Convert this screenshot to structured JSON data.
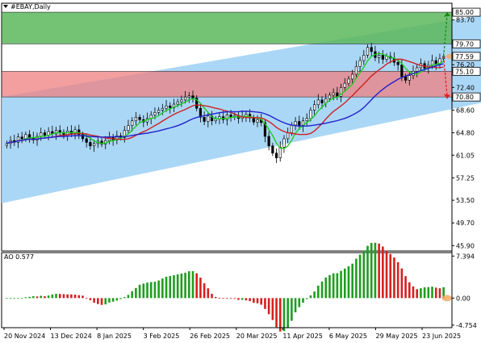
{
  "symbol_label": "#EBAY,Daily",
  "oscillator_label": "AO 0.577",
  "colors": {
    "background": "#ffffff",
    "channel": "#9cd0f5",
    "green_zone": "#5cb85c",
    "red_zone": "#f08080",
    "candle": "#000000",
    "ma_fast": "#22cc22",
    "ma_mid": "#cc2222",
    "ma_slow": "#2222cc",
    "ao_up": "#1e9e1e",
    "ao_down": "#d62020",
    "arrow_up": "#1a8a1a",
    "arrow_down": "#dd2222",
    "highlight": "#f5a55a",
    "price_box_stroke": "#000000"
  },
  "chart_data": {
    "type": "candlestick",
    "title": "#EBAY,Daily",
    "x_ticks": [
      "20 Nov 2024",
      "13 Dec 2024",
      "8 Jan 2025",
      "3 Feb 2025",
      "26 Feb 2025",
      "20 Mar 2025",
      "11 Apr 2025",
      "6 May 2025",
      "29 May 2025",
      "23 Jun 2025"
    ],
    "y_ticks": [
      45.9,
      49.7,
      53.5,
      57.25,
      61.05,
      64.8,
      68.6,
      72.4,
      76.2,
      79.95,
      83.7
    ],
    "price_labels": [
      {
        "value": 85.0,
        "text": "85.00"
      },
      {
        "value": 79.7,
        "text": "79.70"
      },
      {
        "value": 77.59,
        "text": "77.59"
      },
      {
        "value": 75.1,
        "text": "75.10"
      },
      {
        "value": 70.8,
        "text": "70.80"
      }
    ],
    "ylim": [
      45.0,
      86.5
    ],
    "zones": {
      "green": [
        79.7,
        85.0
      ],
      "red": [
        70.8,
        75.1
      ]
    },
    "channel": {
      "upper_start": 70.8,
      "upper_end": 84.5,
      "lower_start": 53.0,
      "lower_end": 69.8
    },
    "close_series": [
      63.0,
      63.5,
      63.2,
      64.1,
      63.8,
      64.5,
      64.0,
      63.6,
      64.2,
      64.8,
      64.4,
      65.0,
      64.6,
      65.2,
      64.9,
      64.3,
      65.1,
      64.7,
      65.3,
      64.5,
      63.8,
      63.2,
      62.6,
      63.0,
      63.4,
      62.9,
      63.5,
      64.0,
      63.6,
      64.3,
      64.0,
      65.2,
      66.0,
      66.8,
      67.4,
      67.0,
      66.6,
      67.2,
      67.8,
      68.2,
      68.6,
      68.9,
      69.3,
      69.0,
      69.6,
      70.0,
      70.3,
      70.8,
      71.0,
      70.6,
      68.9,
      67.4,
      66.7,
      67.6,
      66.8,
      67.1,
      67.5,
      67.0,
      67.8,
      67.4,
      67.7,
      67.2,
      67.6,
      67.9,
      67.3,
      66.6,
      67.0,
      66.5,
      64.2,
      62.6,
      61.4,
      60.6,
      62.4,
      63.8,
      64.8,
      66.1,
      66.7,
      65.9,
      66.8,
      67.2,
      68.6,
      69.5,
      70.3,
      69.8,
      70.5,
      71.1,
      71.5,
      70.9,
      72.4,
      73.1,
      73.8,
      74.6,
      75.9,
      76.9,
      77.8,
      79.1,
      78.4,
      77.4,
      77.8,
      77.1,
      77.6,
      77.3,
      76.6,
      76.2,
      74.2,
      73.6,
      74.4,
      75.1,
      75.7,
      76.4,
      75.6,
      76.1,
      76.9,
      76.3,
      77.2,
      77.59
    ],
    "series": [
      {
        "type": "line",
        "period": 5
      },
      {
        "type": "line",
        "period": 13
      },
      {
        "type": "line",
        "period": 26
      }
    ],
    "ao": {
      "label": "AO 0.577",
      "y_ticks": [
        7.394,
        0.0,
        -4.754
      ],
      "ylim": [
        -5.2,
        8.0
      ]
    },
    "grid": false
  }
}
